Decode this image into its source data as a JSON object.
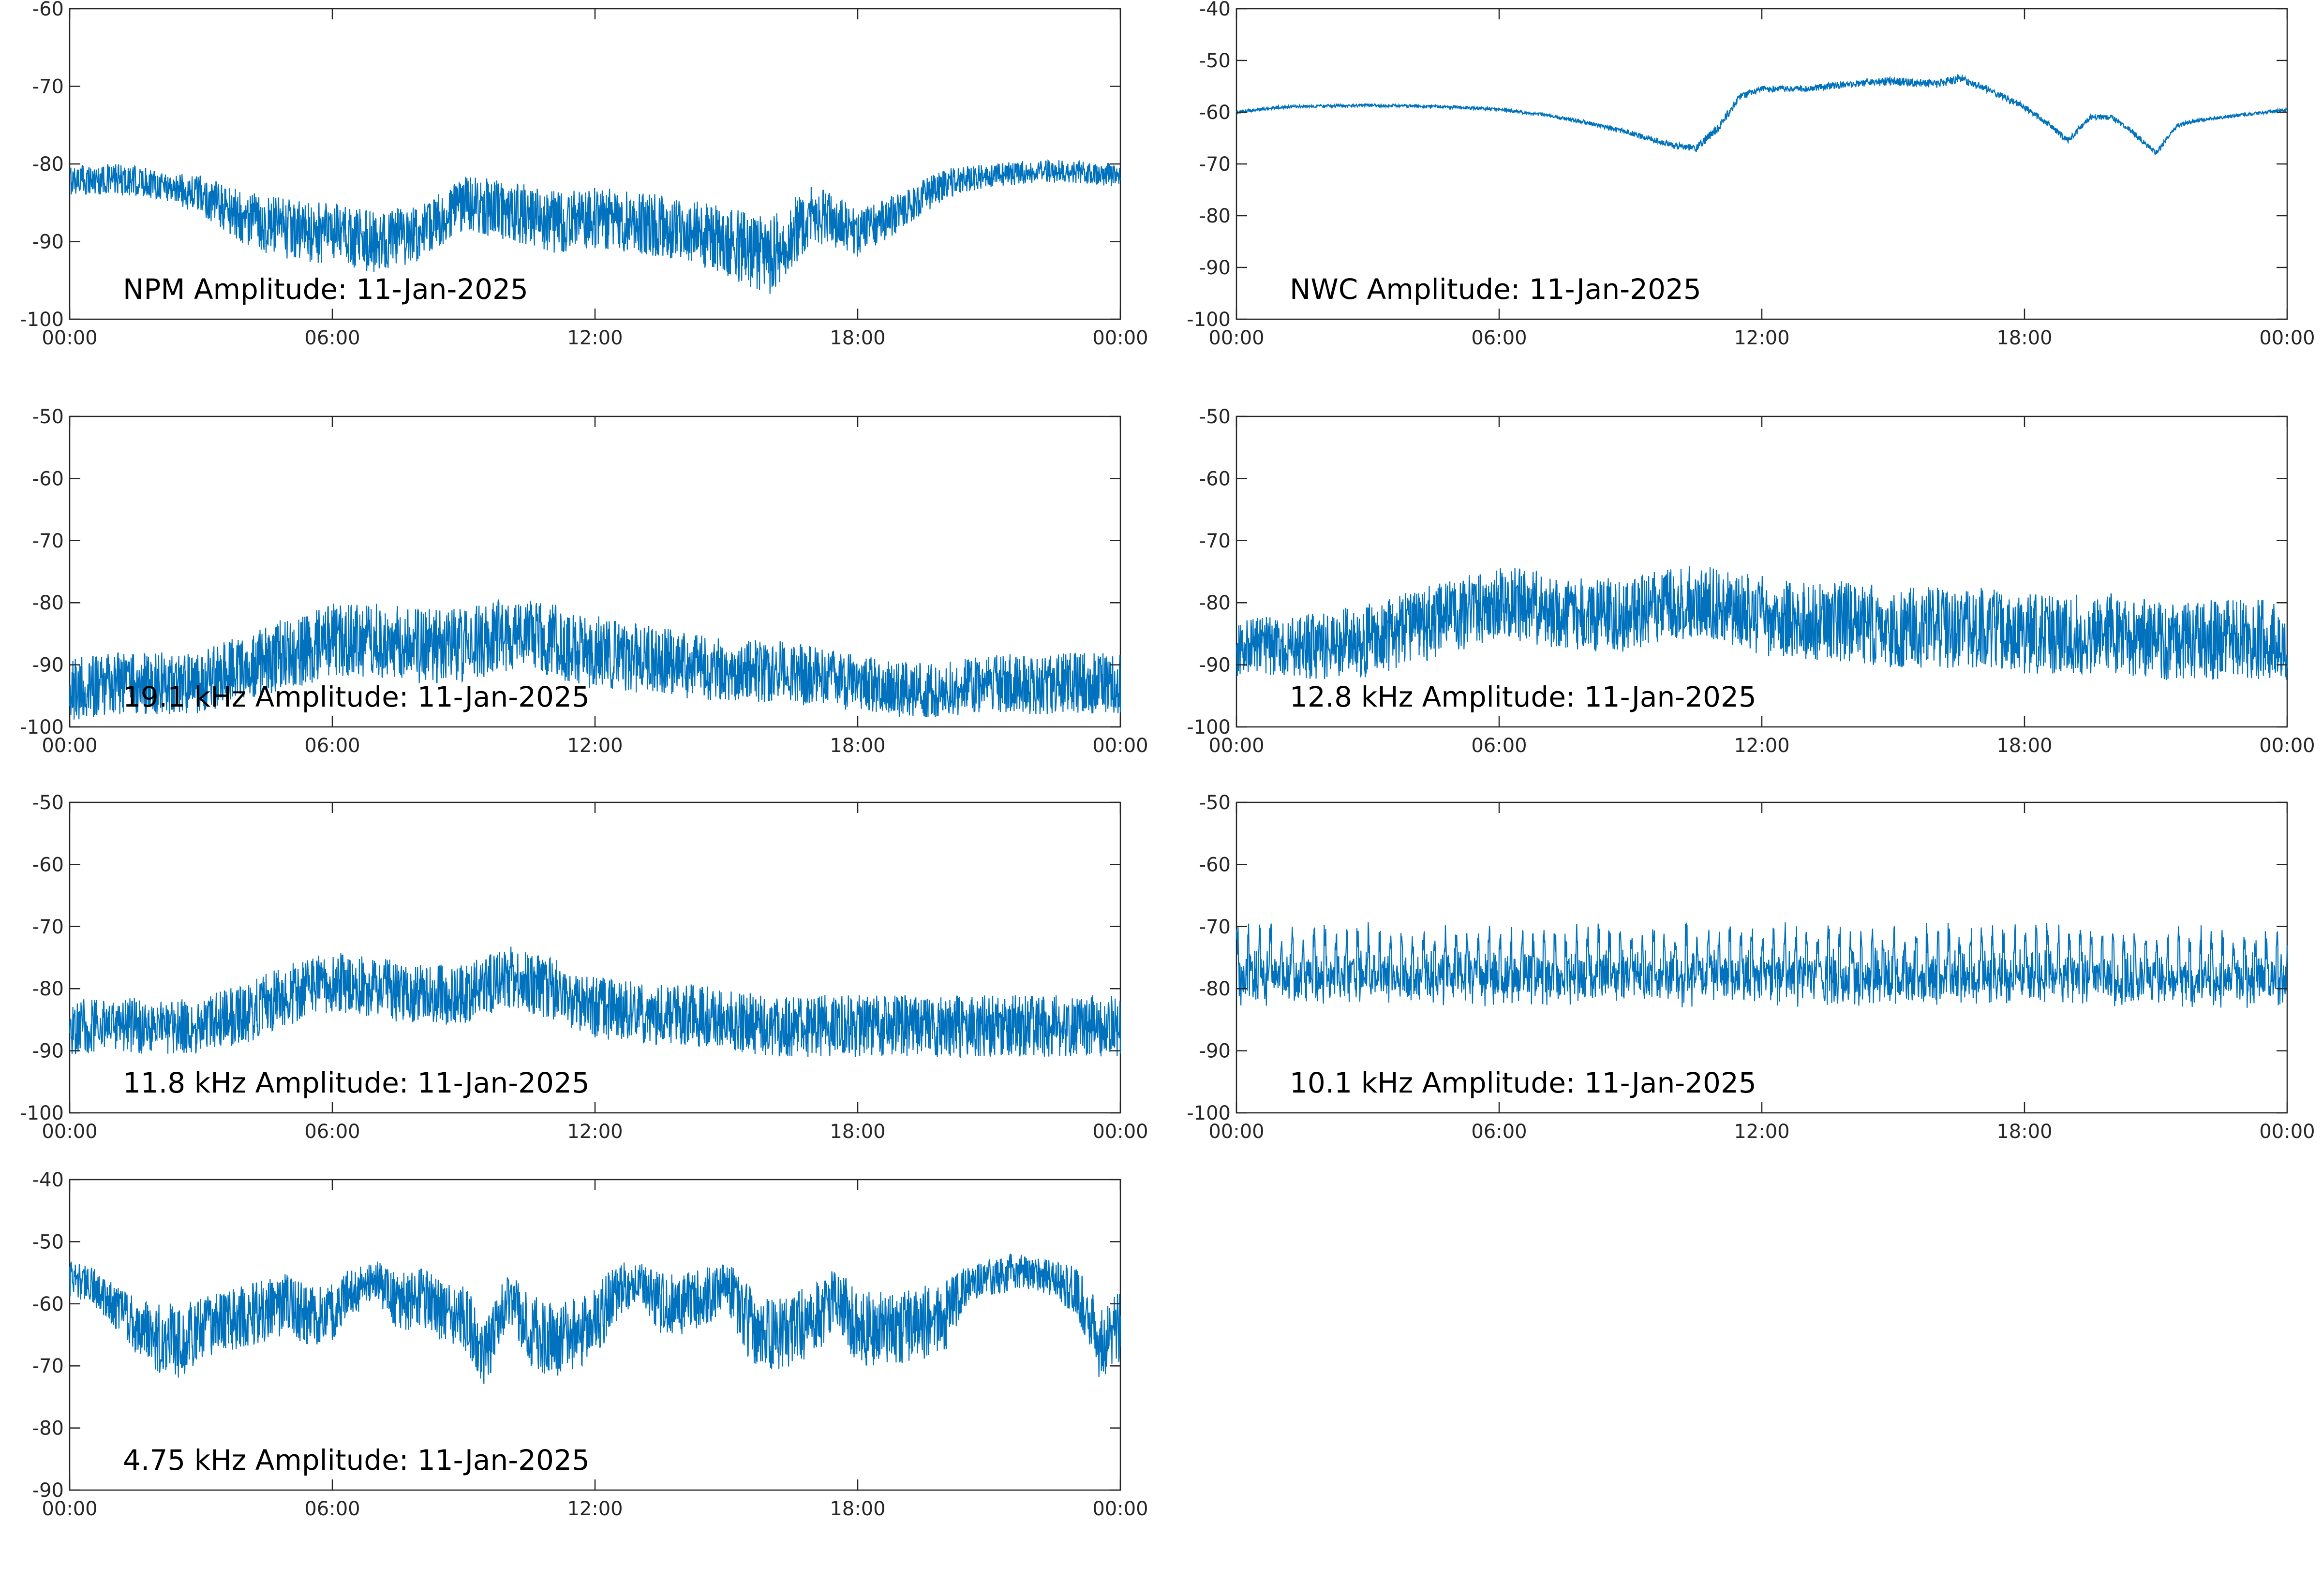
{
  "figure": {
    "background": "#ffffff",
    "line_color": "#0072bd"
  },
  "chart_data": [
    {
      "type": "line",
      "title": "NPM Amplitude: 11-Jan-2025",
      "x_ticks": [
        "00:00",
        "06:00",
        "12:00",
        "18:00",
        "00:00"
      ],
      "ylim": [
        -100,
        -60
      ],
      "y_ticks": [
        -60,
        -70,
        -80,
        -90,
        -100
      ],
      "series": [
        {
          "x": [
            0,
            1,
            2,
            3,
            4,
            5,
            6,
            7,
            8,
            9,
            10,
            11,
            12,
            13,
            14,
            15,
            16,
            17,
            18,
            19,
            20,
            21,
            22,
            23,
            24
          ],
          "center": [
            -82,
            -82,
            -82.5,
            -84,
            -87,
            -88.5,
            -89,
            -90,
            -89,
            -85,
            -86,
            -87.5,
            -87,
            -87.5,
            -88.5,
            -90,
            -92,
            -86,
            -89,
            -86,
            -82.5,
            -81.5,
            -81,
            -81,
            -81.5
          ],
          "spread": [
            2,
            2,
            2,
            2.5,
            3.5,
            4,
            4,
            4,
            3.5,
            3.5,
            4,
            4,
            4,
            4,
            4,
            4.5,
            5,
            4,
            3,
            2.5,
            2,
            1.5,
            1.5,
            1.5,
            1.5
          ]
        }
      ]
    },
    {
      "type": "line",
      "title": "NWC Amplitude: 11-Jan-2025",
      "x_ticks": [
        "00:00",
        "06:00",
        "12:00",
        "18:00",
        "00:00"
      ],
      "ylim": [
        -100,
        -40
      ],
      "y_ticks": [
        -40,
        -50,
        -60,
        -70,
        -80,
        -90,
        -100
      ],
      "series": [
        {
          "x": [
            0,
            1,
            2,
            3,
            4,
            5,
            6,
            7,
            8,
            9,
            10,
            10.5,
            11,
            11.5,
            12,
            13,
            14,
            15,
            16,
            16.5,
            17,
            18,
            18.5,
            19,
            19.5,
            20,
            20.5,
            21,
            21.5,
            22,
            23,
            24
          ],
          "center": [
            -60,
            -59,
            -58.8,
            -58.7,
            -58.8,
            -59,
            -59.5,
            -60.5,
            -62,
            -64,
            -66.5,
            -67,
            -63,
            -57,
            -55.5,
            -55.5,
            -54.5,
            -54,
            -54.5,
            -53.5,
            -55,
            -59,
            -62,
            -65.5,
            -61,
            -61,
            -64,
            -68,
            -62.5,
            -61.5,
            -60.5,
            -59.5
          ],
          "spread": [
            0.3,
            0.3,
            0.3,
            0.3,
            0.3,
            0.3,
            0.3,
            0.3,
            0.4,
            0.5,
            0.6,
            0.7,
            0.8,
            0.7,
            0.6,
            0.6,
            0.7,
            0.8,
            0.8,
            0.8,
            0.7,
            0.6,
            0.5,
            0.6,
            0.5,
            0.5,
            0.5,
            0.6,
            0.4,
            0.3,
            0.3,
            0.3
          ]
        }
      ]
    },
    {
      "type": "line",
      "title": "19.1 kHz Amplitude: 11-Jan-2025",
      "x_ticks": [
        "00:00",
        "06:00",
        "12:00",
        "18:00",
        "00:00"
      ],
      "ylim": [
        -100,
        -50
      ],
      "y_ticks": [
        -50,
        -60,
        -70,
        -80,
        -90,
        -100
      ],
      "series": [
        {
          "x": [
            0,
            1,
            2,
            3,
            4,
            5,
            6,
            7,
            8,
            9,
            10,
            11,
            12,
            13,
            14,
            15,
            16,
            17,
            18,
            19,
            20,
            21,
            22,
            23,
            24
          ],
          "center": [
            -94,
            -93,
            -93,
            -93,
            -90,
            -88,
            -86,
            -86,
            -87,
            -87,
            -85,
            -86,
            -88,
            -89,
            -90,
            -91,
            -91,
            -92,
            -93,
            -94,
            -94,
            -93,
            -93,
            -93,
            -93
          ],
          "spread": [
            5,
            5,
            5,
            5,
            5.5,
            6,
            6,
            6,
            6,
            6,
            6,
            6,
            6,
            5.5,
            5.5,
            5,
            5,
            5,
            4.5,
            4.5,
            4.5,
            4.5,
            5,
            5,
            5
          ]
        }
      ]
    },
    {
      "type": "line",
      "title": "12.8 kHz Amplitude: 11-Jan-2025",
      "x_ticks": [
        "00:00",
        "06:00",
        "12:00",
        "18:00",
        "00:00"
      ],
      "ylim": [
        -100,
        -50
      ],
      "y_ticks": [
        -50,
        -60,
        -70,
        -80,
        -90,
        -100
      ],
      "series": [
        {
          "x": [
            0,
            1,
            2,
            3,
            4,
            5,
            6,
            7,
            8,
            9,
            10,
            11,
            12,
            13,
            14,
            15,
            16,
            17,
            18,
            19,
            20,
            21,
            22,
            23,
            24
          ],
          "center": [
            -87,
            -87,
            -87,
            -86,
            -84,
            -82,
            -80,
            -81,
            -82,
            -82,
            -80,
            -80,
            -82,
            -83,
            -83,
            -84,
            -84,
            -84,
            -85,
            -85,
            -85,
            -86,
            -86,
            -86,
            -86
          ],
          "spread": [
            5,
            5,
            5.5,
            6,
            6,
            6,
            6,
            6,
            6,
            6,
            6,
            6,
            6.5,
            6.5,
            6.5,
            6.5,
            6.5,
            6.5,
            6.5,
            6.5,
            6.5,
            6.5,
            6.5,
            6.5,
            6.5
          ]
        }
      ]
    },
    {
      "type": "line",
      "title": "11.8 kHz Amplitude: 11-Jan-2025",
      "x_ticks": [
        "00:00",
        "06:00",
        "12:00",
        "18:00",
        "00:00"
      ],
      "ylim": [
        -100,
        -50
      ],
      "y_ticks": [
        -50,
        -60,
        -70,
        -80,
        -90,
        -100
      ],
      "series": [
        {
          "x": [
            0,
            1,
            2,
            3,
            4,
            5,
            6,
            7,
            8,
            9,
            10,
            11,
            12,
            13,
            14,
            15,
            16,
            17,
            18,
            19,
            20,
            21,
            22,
            23,
            24
          ],
          "center": [
            -86,
            -86,
            -86,
            -86,
            -84,
            -81,
            -79,
            -80,
            -81,
            -81,
            -78,
            -80,
            -83,
            -84,
            -84,
            -85,
            -86,
            -86,
            -86,
            -86,
            -86,
            -86,
            -86,
            -86,
            -86
          ],
          "spread": [
            4.5,
            4.5,
            4.5,
            4.5,
            5,
            5,
            5,
            5,
            5,
            5,
            5,
            5,
            5,
            5,
            5,
            5,
            5,
            5,
            5,
            5,
            5,
            5,
            5,
            5,
            5
          ]
        }
      ]
    },
    {
      "type": "line",
      "title": "10.1 kHz Amplitude: 11-Jan-2025",
      "x_ticks": [
        "00:00",
        "06:00",
        "12:00",
        "18:00",
        "00:00"
      ],
      "ylim": [
        -100,
        -50
      ],
      "y_ticks": [
        -50,
        -60,
        -70,
        -80,
        -90,
        -100
      ],
      "series": [
        {
          "x": [
            0,
            1,
            2,
            3,
            4,
            5,
            6,
            7,
            8,
            9,
            10,
            11,
            12,
            13,
            14,
            15,
            16,
            17,
            18,
            19,
            20,
            21,
            22,
            23,
            24
          ],
          "center": [
            -77,
            -77,
            -77,
            -77,
            -77,
            -77,
            -77,
            -77,
            -77,
            -77,
            -77,
            -77,
            -77,
            -77,
            -77,
            -77,
            -77,
            -77,
            -77,
            -77,
            -78,
            -78,
            -78,
            -78,
            -78
          ],
          "spread": [
            5,
            5,
            5,
            5,
            5,
            5,
            5,
            5,
            5,
            5,
            5,
            5,
            5,
            5,
            5,
            5,
            5,
            5,
            5,
            5,
            5,
            5,
            5,
            5,
            5
          ],
          "pulse_peak": -69,
          "pulse_base": -82,
          "pulse_count": 96
        }
      ]
    },
    {
      "type": "line",
      "title": "4.75 kHz Amplitude: 11-Jan-2025",
      "x_ticks": [
        "00:00",
        "06:00",
        "12:00",
        "18:00",
        "00:00"
      ],
      "ylim": [
        -90,
        -40
      ],
      "y_ticks": [
        -40,
        -50,
        -60,
        -70,
        -80,
        -90
      ],
      "series": [
        {
          "x": [
            0,
            0.5,
            1,
            1.5,
            2,
            2.5,
            3,
            3.5,
            4,
            4.5,
            5,
            5.5,
            6,
            6.5,
            7,
            7.5,
            8,
            8.5,
            9,
            9.5,
            10,
            10.5,
            11,
            11.5,
            12,
            12.5,
            13,
            13.5,
            14,
            14.5,
            15,
            15.5,
            16,
            16.5,
            17,
            17.5,
            18,
            18.5,
            19,
            19.5,
            20,
            20.5,
            21,
            21.5,
            22,
            22.5,
            23,
            23.5,
            24
          ],
          "center": [
            -56,
            -57,
            -60,
            -63,
            -65,
            -66,
            -64,
            -63,
            -62,
            -61,
            -60,
            -62,
            -61,
            -58,
            -56,
            -60,
            -59,
            -61,
            -62,
            -68,
            -59,
            -64,
            -66,
            -65,
            -63,
            -58,
            -56,
            -60,
            -60,
            -59,
            -57,
            -63,
            -65,
            -64,
            -63,
            -59,
            -64,
            -64,
            -64,
            -63,
            -62,
            -57,
            -56,
            -55,
            -55,
            -56,
            -58,
            -66,
            -64
          ],
          "spread": [
            3,
            3,
            4,
            5,
            6,
            6,
            5,
            5,
            5,
            5,
            5,
            5,
            5,
            4,
            3,
            5,
            5,
            5,
            5,
            6,
            4,
            6,
            6,
            6,
            6,
            5,
            3,
            5,
            5,
            5,
            4,
            6,
            6,
            6,
            6,
            5,
            6,
            6,
            6,
            6,
            6,
            3,
            3,
            3,
            3,
            3,
            4,
            6,
            6
          ]
        }
      ]
    }
  ]
}
